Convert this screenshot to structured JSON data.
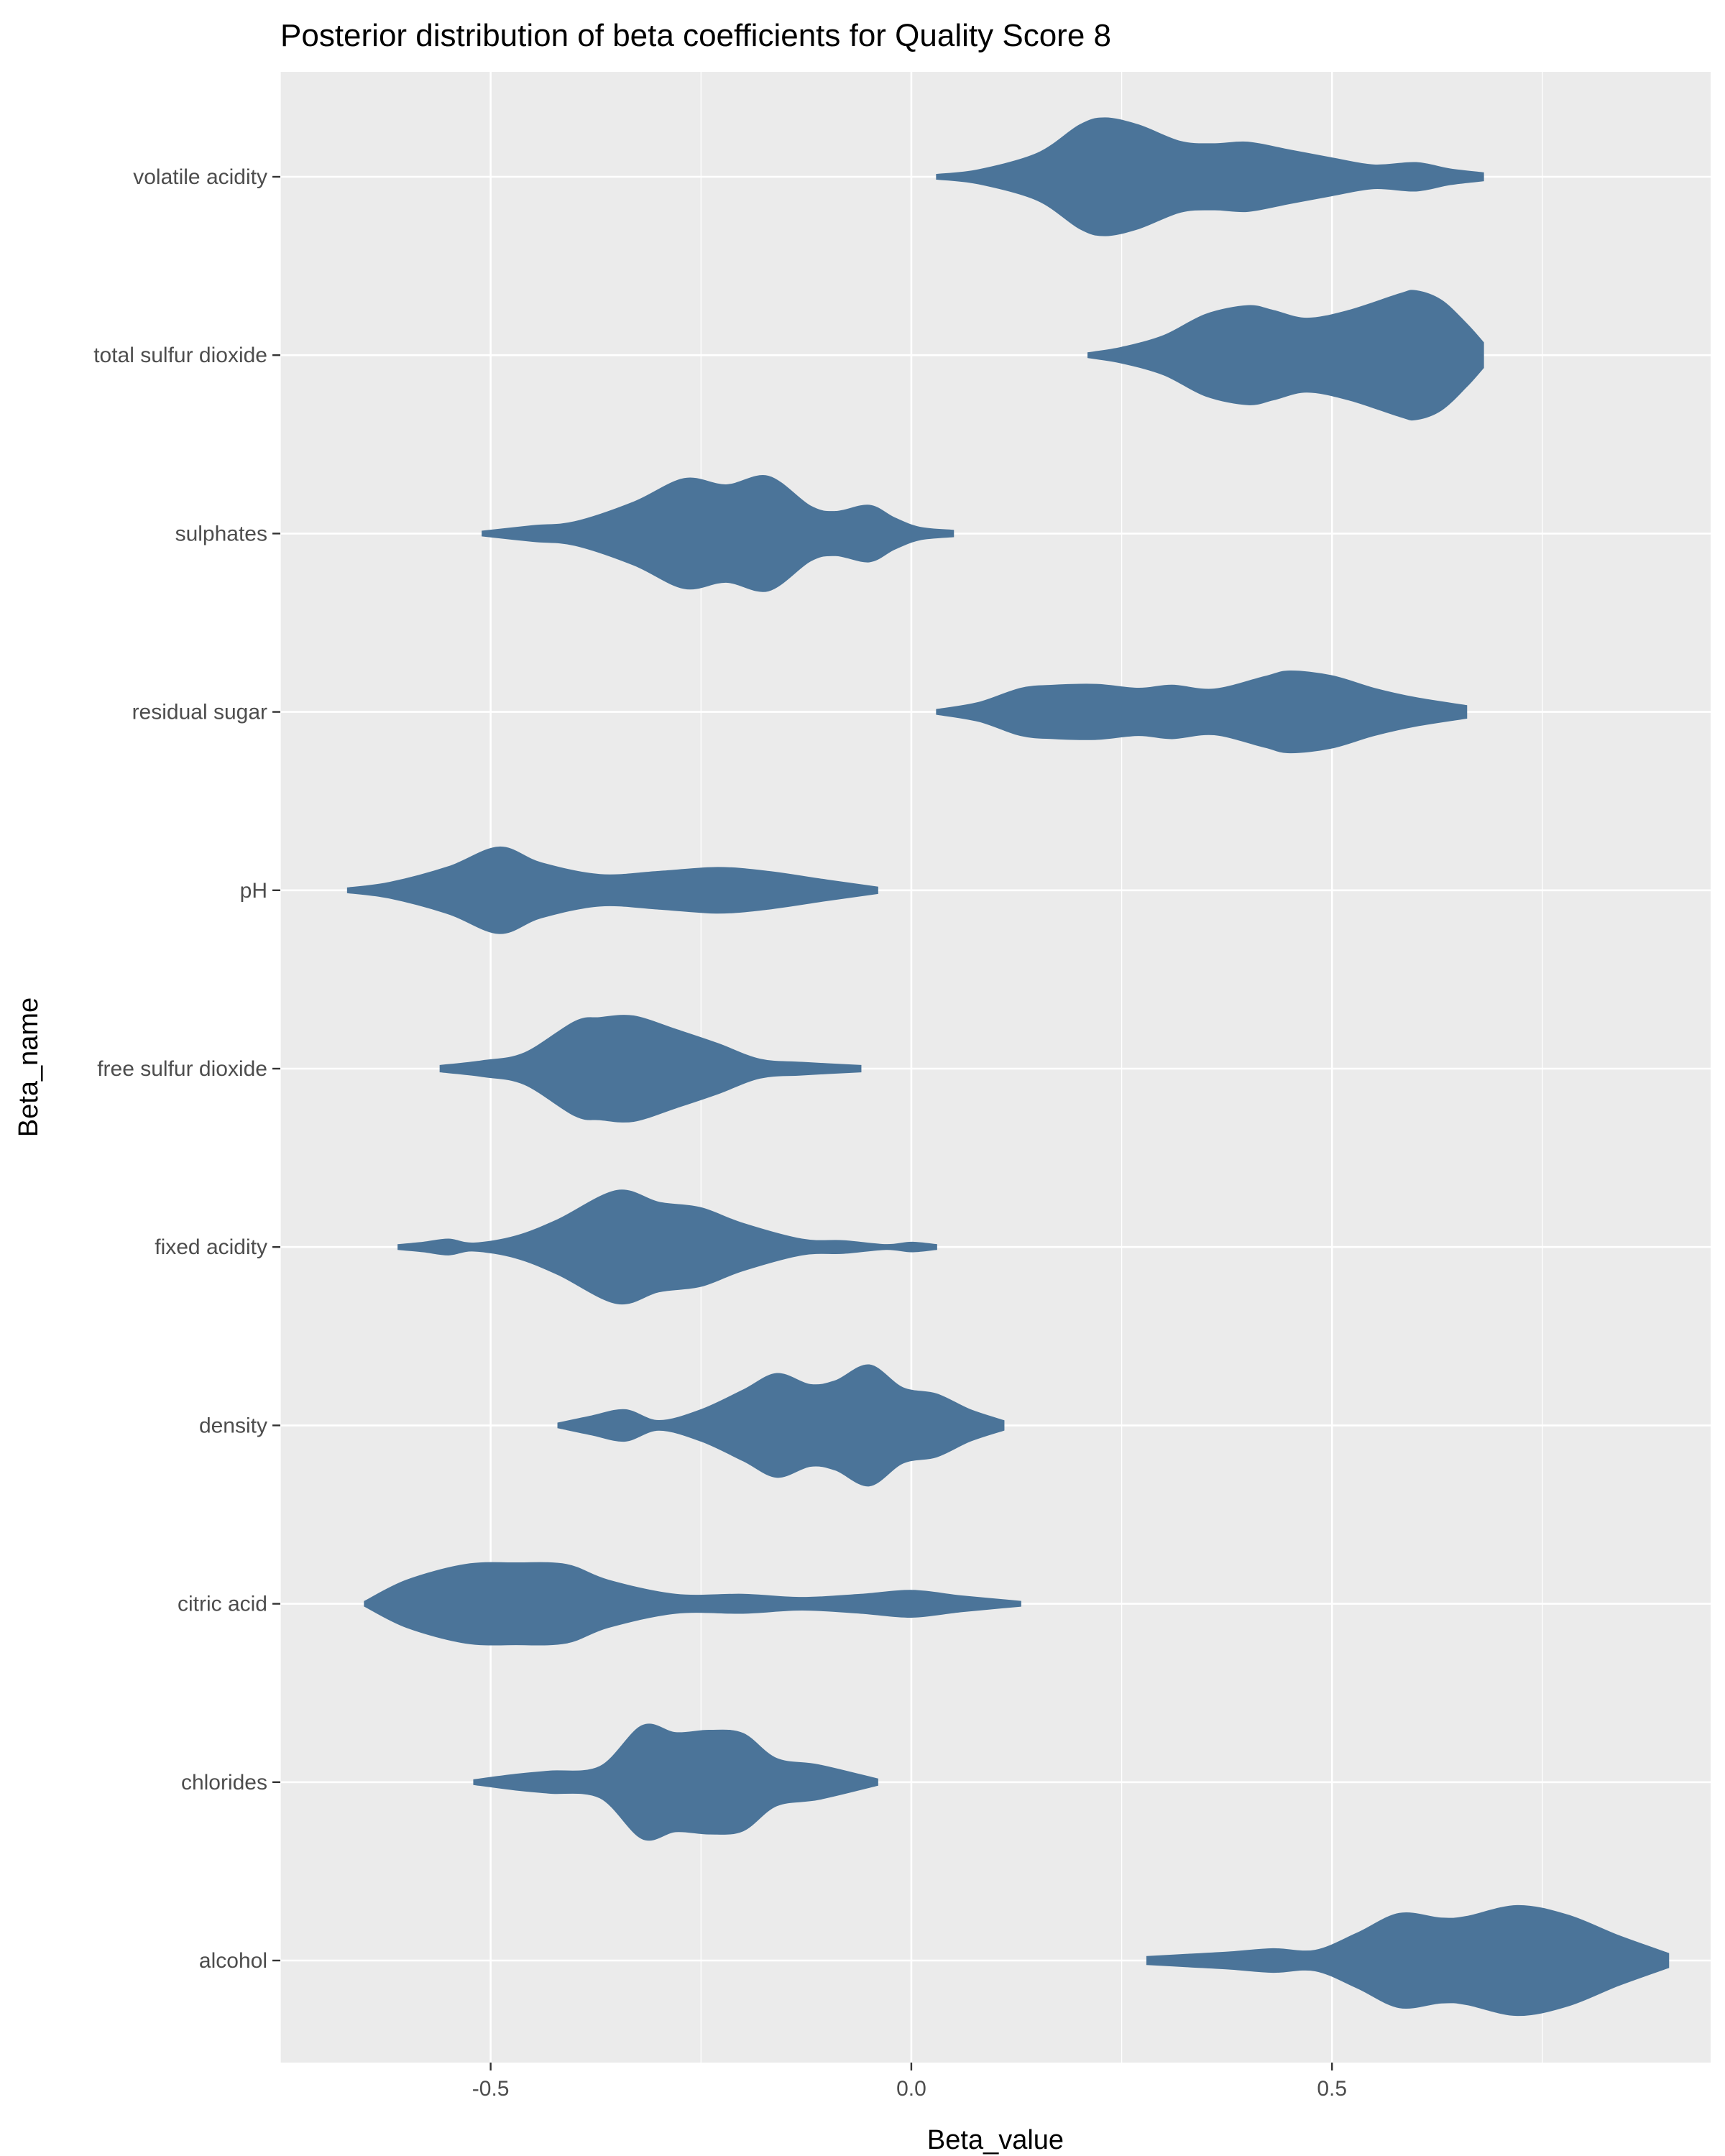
{
  "chart_data": {
    "type": "violin",
    "title": "Posterior distribution of beta coefficients for Quality Score 8",
    "xlabel": "Beta_value",
    "ylabel": "Beta_name",
    "xlim": [
      -0.75,
      0.95
    ],
    "x_ticks": [
      -0.5,
      0.0,
      0.5
    ],
    "x_tick_labels": [
      "-0.5",
      "0.0",
      "0.5"
    ],
    "fill_color": "#4b7499",
    "panel_background": "#ebebeb",
    "grid": true,
    "legend": "none",
    "categories": [
      "volatile acidity",
      "total sulfur dioxide",
      "sulphates",
      "residual sugar",
      "pH",
      "free sulfur dioxide",
      "fixed acidity",
      "density",
      "citric acid",
      "chlorides",
      "alcohol"
    ],
    "series": [
      {
        "category": "volatile acidity",
        "min": 0.03,
        "max": 0.68,
        "profile": [
          [
            0.03,
            0.03
          ],
          [
            0.08,
            0.09
          ],
          [
            0.15,
            0.3
          ],
          [
            0.2,
            0.66
          ],
          [
            0.23,
            0.75
          ],
          [
            0.27,
            0.66
          ],
          [
            0.32,
            0.45
          ],
          [
            0.36,
            0.42
          ],
          [
            0.4,
            0.44
          ],
          [
            0.45,
            0.34
          ],
          [
            0.5,
            0.24
          ],
          [
            0.55,
            0.15
          ],
          [
            0.6,
            0.18
          ],
          [
            0.64,
            0.1
          ],
          [
            0.68,
            0.05
          ]
        ]
      },
      {
        "category": "total sulfur dioxide",
        "min": 0.21,
        "max": 0.68,
        "profile": [
          [
            0.21,
            0.03
          ],
          [
            0.25,
            0.1
          ],
          [
            0.3,
            0.25
          ],
          [
            0.35,
            0.52
          ],
          [
            0.4,
            0.63
          ],
          [
            0.43,
            0.57
          ],
          [
            0.47,
            0.47
          ],
          [
            0.52,
            0.57
          ],
          [
            0.58,
            0.78
          ],
          [
            0.6,
            0.82
          ],
          [
            0.63,
            0.7
          ],
          [
            0.66,
            0.4
          ],
          [
            0.68,
            0.16
          ]
        ]
      },
      {
        "category": "sulphates",
        "min": -0.51,
        "max": 0.05,
        "profile": [
          [
            -0.51,
            0.03
          ],
          [
            -0.45,
            0.1
          ],
          [
            -0.4,
            0.15
          ],
          [
            -0.33,
            0.4
          ],
          [
            -0.27,
            0.7
          ],
          [
            -0.22,
            0.62
          ],
          [
            -0.17,
            0.73
          ],
          [
            -0.12,
            0.35
          ],
          [
            -0.09,
            0.28
          ],
          [
            -0.05,
            0.36
          ],
          [
            -0.02,
            0.2
          ],
          [
            0.01,
            0.08
          ],
          [
            0.05,
            0.04
          ]
        ]
      },
      {
        "category": "residual sugar",
        "min": 0.03,
        "max": 0.66,
        "profile": [
          [
            0.03,
            0.03
          ],
          [
            0.08,
            0.12
          ],
          [
            0.13,
            0.3
          ],
          [
            0.17,
            0.34
          ],
          [
            0.22,
            0.35
          ],
          [
            0.27,
            0.3
          ],
          [
            0.31,
            0.34
          ],
          [
            0.36,
            0.29
          ],
          [
            0.42,
            0.45
          ],
          [
            0.45,
            0.52
          ],
          [
            0.5,
            0.46
          ],
          [
            0.55,
            0.3
          ],
          [
            0.6,
            0.18
          ],
          [
            0.66,
            0.08
          ]
        ]
      },
      {
        "category": "pH",
        "min": -0.67,
        "max": -0.04,
        "profile": [
          [
            -0.67,
            0.03
          ],
          [
            -0.62,
            0.1
          ],
          [
            -0.55,
            0.3
          ],
          [
            -0.49,
            0.55
          ],
          [
            -0.44,
            0.35
          ],
          [
            -0.37,
            0.2
          ],
          [
            -0.3,
            0.24
          ],
          [
            -0.23,
            0.29
          ],
          [
            -0.17,
            0.24
          ],
          [
            -0.1,
            0.13
          ],
          [
            -0.04,
            0.04
          ]
        ]
      },
      {
        "category": "free sulfur dioxide",
        "min": -0.56,
        "max": -0.06,
        "profile": [
          [
            -0.56,
            0.04
          ],
          [
            -0.51,
            0.1
          ],
          [
            -0.46,
            0.2
          ],
          [
            -0.4,
            0.6
          ],
          [
            -0.37,
            0.65
          ],
          [
            -0.33,
            0.67
          ],
          [
            -0.28,
            0.5
          ],
          [
            -0.23,
            0.32
          ],
          [
            -0.18,
            0.12
          ],
          [
            -0.13,
            0.08
          ],
          [
            -0.06,
            0.04
          ]
        ]
      },
      {
        "category": "fixed acidity",
        "min": -0.61,
        "max": 0.03,
        "profile": [
          [
            -0.61,
            0.03
          ],
          [
            -0.58,
            0.06
          ],
          [
            -0.55,
            0.1
          ],
          [
            -0.52,
            0.05
          ],
          [
            -0.47,
            0.14
          ],
          [
            -0.42,
            0.35
          ],
          [
            -0.35,
            0.72
          ],
          [
            -0.3,
            0.57
          ],
          [
            -0.25,
            0.5
          ],
          [
            -0.2,
            0.3
          ],
          [
            -0.13,
            0.1
          ],
          [
            -0.08,
            0.08
          ],
          [
            -0.03,
            0.03
          ],
          [
            0.0,
            0.06
          ],
          [
            0.03,
            0.03
          ]
        ]
      },
      {
        "category": "density",
        "min": -0.42,
        "max": 0.11,
        "profile": [
          [
            -0.42,
            0.03
          ],
          [
            -0.38,
            0.12
          ],
          [
            -0.34,
            0.2
          ],
          [
            -0.3,
            0.06
          ],
          [
            -0.25,
            0.2
          ],
          [
            -0.2,
            0.45
          ],
          [
            -0.16,
            0.66
          ],
          [
            -0.12,
            0.52
          ],
          [
            -0.09,
            0.57
          ],
          [
            -0.05,
            0.77
          ],
          [
            -0.01,
            0.48
          ],
          [
            0.03,
            0.4
          ],
          [
            0.07,
            0.2
          ],
          [
            0.11,
            0.06
          ]
        ]
      },
      {
        "category": "citric acid",
        "min": -0.65,
        "max": 0.13,
        "profile": [
          [
            -0.65,
            0.03
          ],
          [
            -0.6,
            0.3
          ],
          [
            -0.53,
            0.5
          ],
          [
            -0.47,
            0.52
          ],
          [
            -0.41,
            0.5
          ],
          [
            -0.36,
            0.3
          ],
          [
            -0.28,
            0.12
          ],
          [
            -0.2,
            0.12
          ],
          [
            -0.13,
            0.08
          ],
          [
            -0.06,
            0.12
          ],
          [
            0.0,
            0.17
          ],
          [
            0.06,
            0.1
          ],
          [
            0.13,
            0.03
          ]
        ]
      },
      {
        "category": "chlorides",
        "min": -0.52,
        "max": -0.04,
        "profile": [
          [
            -0.52,
            0.03
          ],
          [
            -0.47,
            0.1
          ],
          [
            -0.43,
            0.14
          ],
          [
            -0.37,
            0.2
          ],
          [
            -0.32,
            0.72
          ],
          [
            -0.28,
            0.63
          ],
          [
            -0.24,
            0.66
          ],
          [
            -0.2,
            0.62
          ],
          [
            -0.16,
            0.3
          ],
          [
            -0.11,
            0.22
          ],
          [
            -0.04,
            0.04
          ]
        ]
      },
      {
        "category": "alcohol",
        "min": 0.28,
        "max": 0.9,
        "profile": [
          [
            0.28,
            0.05
          ],
          [
            0.33,
            0.08
          ],
          [
            0.38,
            0.11
          ],
          [
            0.43,
            0.15
          ],
          [
            0.48,
            0.13
          ],
          [
            0.53,
            0.35
          ],
          [
            0.58,
            0.6
          ],
          [
            0.63,
            0.54
          ],
          [
            0.66,
            0.56
          ],
          [
            0.72,
            0.7
          ],
          [
            0.78,
            0.58
          ],
          [
            0.84,
            0.32
          ],
          [
            0.9,
            0.09
          ]
        ]
      }
    ]
  }
}
